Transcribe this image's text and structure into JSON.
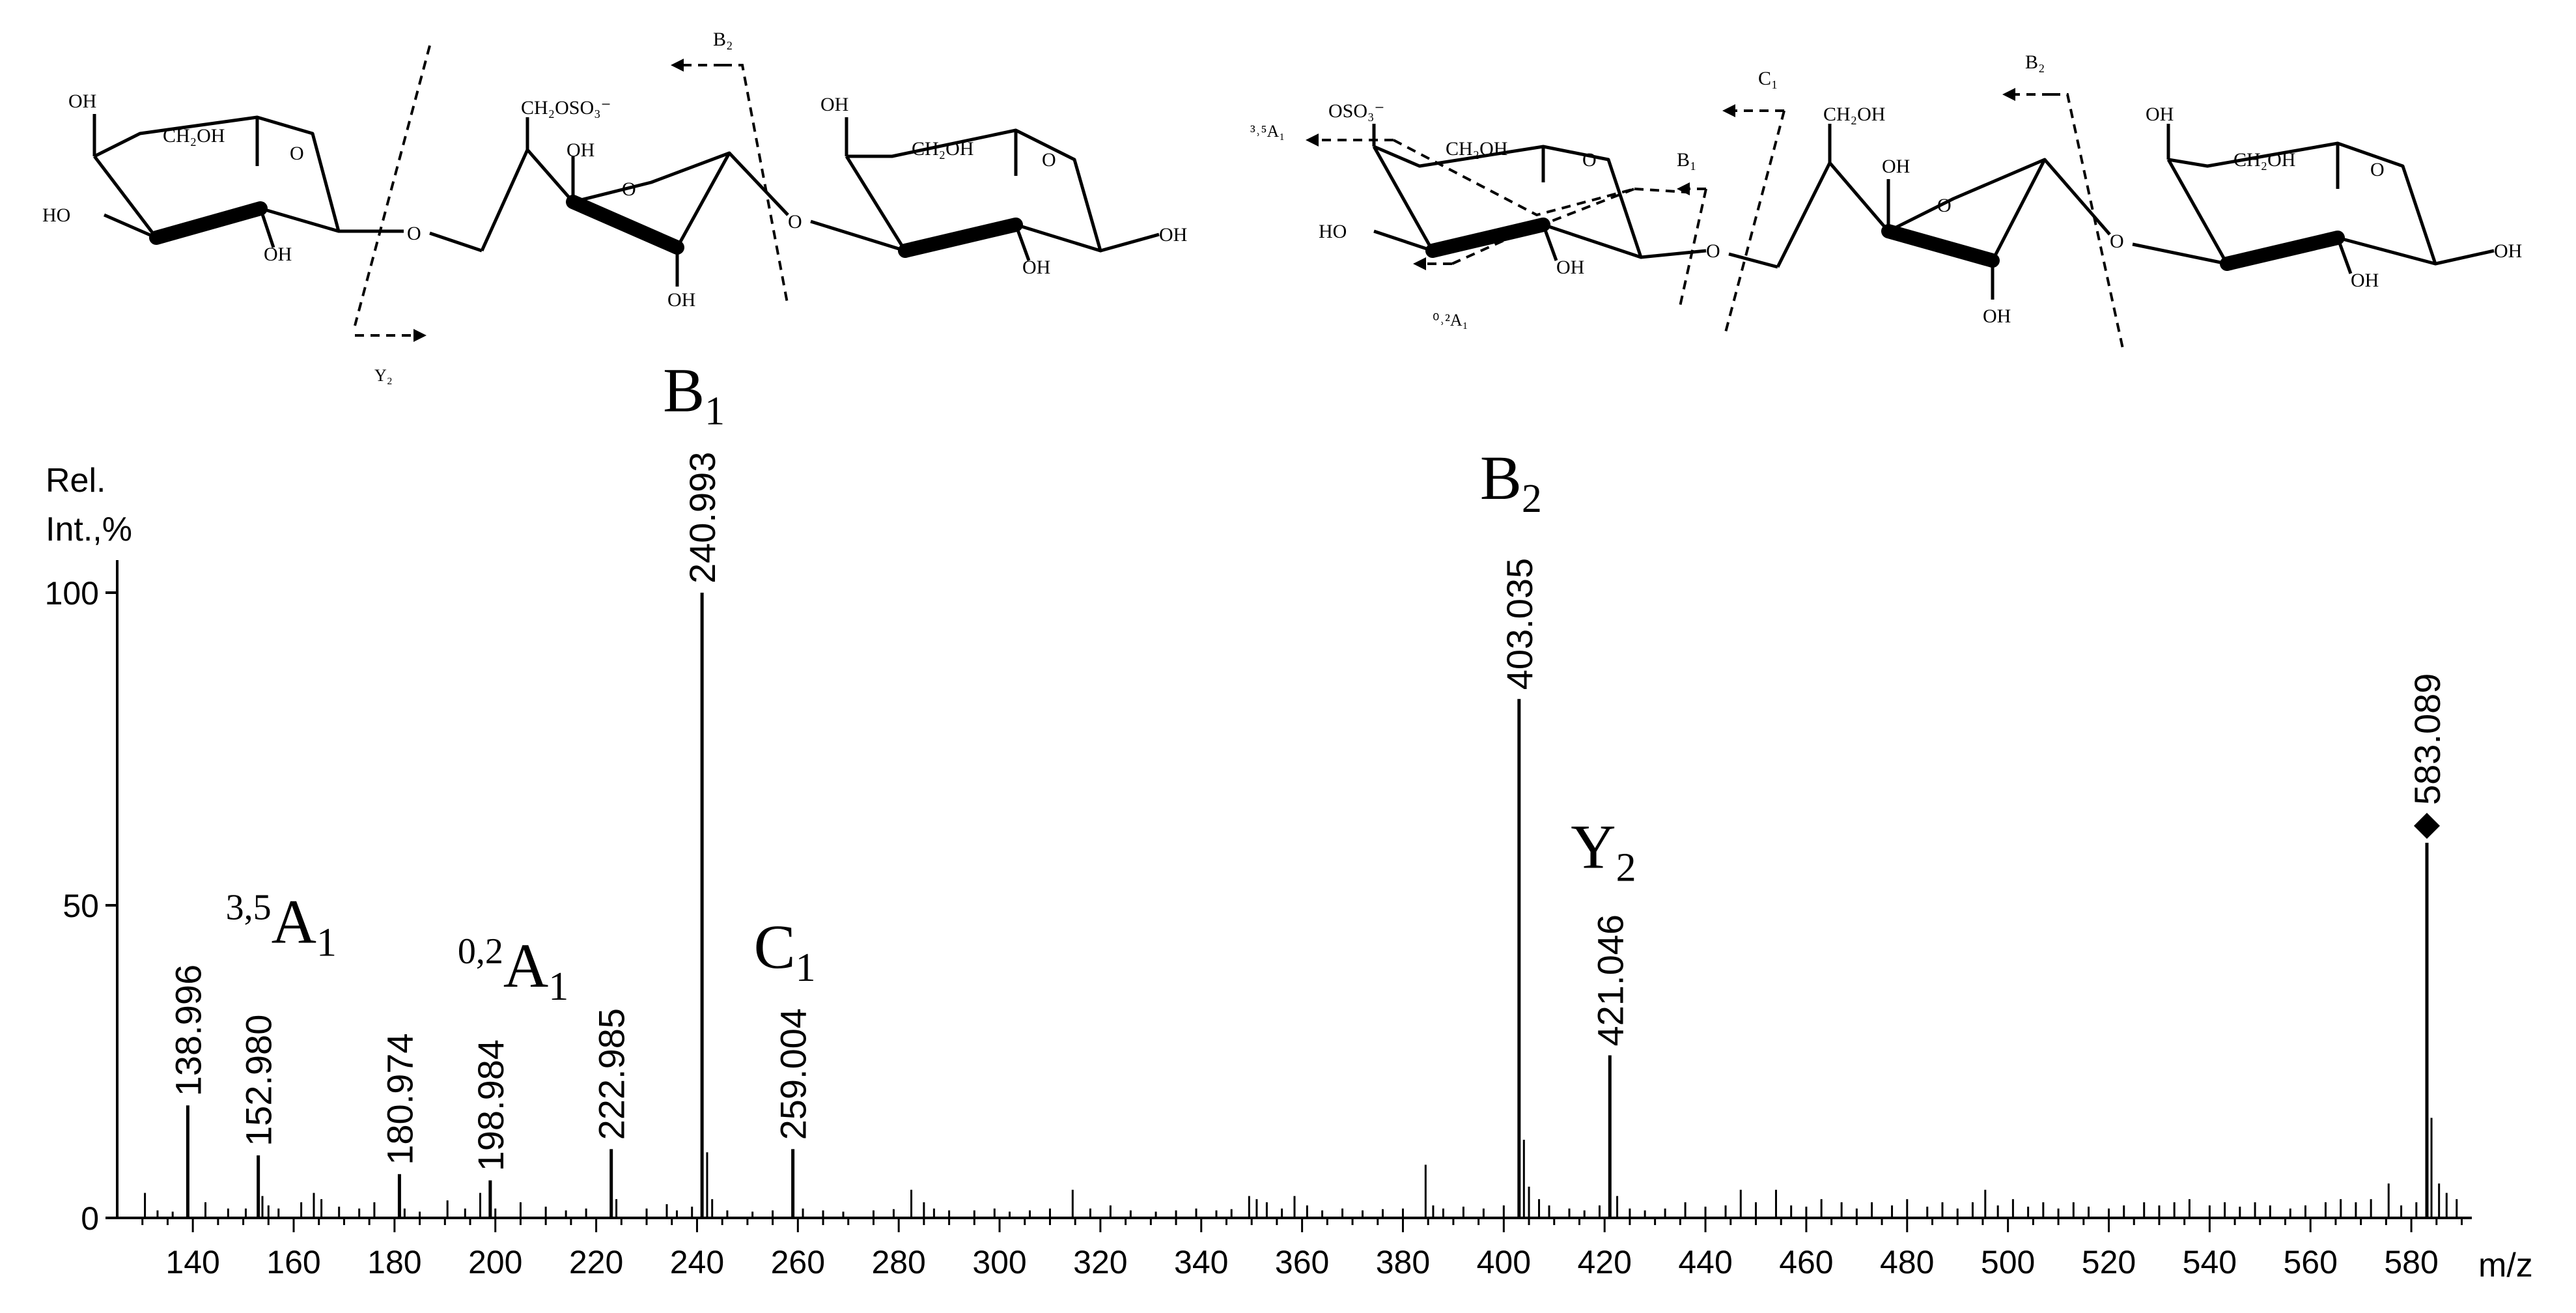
{
  "structures": {
    "left_molecule": {
      "ring1": {
        "oh_top": "OH",
        "ch2oh": "CH₂OH",
        "ho_left": "HO",
        "oh_bottom": "OH",
        "o_ring": "O"
      },
      "link1": "O",
      "ring2": {
        "ch2oso3": "CH₂OSO₃⁻",
        "oh_top": "OH",
        "o_ring": "O",
        "oh_bottom": "OH"
      },
      "link2": "O",
      "ring3": {
        "oh_top": "OH",
        "ch2oh": "CH₂OH",
        "oh_bottom": "OH",
        "oh_right": "OH",
        "o_ring": "O"
      },
      "cleavages": [
        {
          "label": "B₂"
        },
        {
          "label": "Y₂"
        }
      ]
    },
    "right_molecule": {
      "ring1": {
        "oso3": "OSO₃⁻",
        "ch2oh": "CH₂OH",
        "ho_left": "HO",
        "oh_bottom": "OH",
        "o_ring": "O"
      },
      "link1": "O",
      "ring2": {
        "ch2oh": "CH₂OH",
        "oh_top": "OH",
        "o_ring": "O",
        "oh_bottom": "OH"
      },
      "link2": "O",
      "ring3": {
        "oh_top": "OH",
        "ch2oh": "CH₂OH",
        "oh_bottom": "OH",
        "oh_right": "OH",
        "o_ring": "O"
      },
      "cleavages": [
        {
          "label": "³˒⁵A₁"
        },
        {
          "label": "⁰˒²A₁"
        },
        {
          "label": "B₁"
        },
        {
          "label": "C₁"
        },
        {
          "label": "B₂"
        }
      ]
    }
  },
  "chart_data": {
    "type": "bar",
    "subtype": "mass-spectrum",
    "ylabel_line1": "Rel.",
    "ylabel_line2": "Int.,%",
    "xlabel": "m/z",
    "xlim": [
      125,
      592
    ],
    "ylim": [
      0,
      105
    ],
    "y_ticks": [
      0,
      50,
      100
    ],
    "x_ticks": [
      140,
      160,
      180,
      200,
      220,
      240,
      260,
      280,
      300,
      320,
      340,
      360,
      380,
      400,
      420,
      440,
      460,
      480,
      500,
      520,
      540,
      560,
      580
    ],
    "precursor_marker": "◆",
    "labeled_peaks": [
      {
        "mz": 138.996,
        "label": "138.996",
        "intensity": 18
      },
      {
        "mz": 152.98,
        "label": "152.980",
        "intensity": 10
      },
      {
        "mz": 180.974,
        "label": "180.974",
        "intensity": 7
      },
      {
        "mz": 198.984,
        "label": "198.984",
        "intensity": 6
      },
      {
        "mz": 222.985,
        "label": "222.985",
        "intensity": 11
      },
      {
        "mz": 240.993,
        "label": "240.993",
        "intensity": 100
      },
      {
        "mz": 259.004,
        "label": "259.004",
        "intensity": 11
      },
      {
        "mz": 403.035,
        "label": "403.035",
        "intensity": 83
      },
      {
        "mz": 421.046,
        "label": "421.046",
        "intensity": 26
      },
      {
        "mz": 583.089,
        "label": "583.089",
        "intensity": 60,
        "precursor": true
      }
    ],
    "minor_peaks": [
      [
        130.5,
        4
      ],
      [
        133,
        1.2
      ],
      [
        136,
        1
      ],
      [
        142.5,
        2.5
      ],
      [
        147,
        1.5
      ],
      [
        150.5,
        1.5
      ],
      [
        153.8,
        3.5
      ],
      [
        155,
        2
      ],
      [
        157,
        1.5
      ],
      [
        161.5,
        2.5
      ],
      [
        164,
        4
      ],
      [
        165.5,
        3
      ],
      [
        169,
        1.8
      ],
      [
        173,
        1.5
      ],
      [
        176,
        2.5
      ],
      [
        182,
        1.5
      ],
      [
        185,
        1
      ],
      [
        190.5,
        2.8
      ],
      [
        194,
        1.5
      ],
      [
        197,
        4
      ],
      [
        200,
        1.5
      ],
      [
        205,
        2.5
      ],
      [
        210,
        1.8
      ],
      [
        214,
        1.2
      ],
      [
        218,
        1.5
      ],
      [
        224,
        3
      ],
      [
        230,
        1.5
      ],
      [
        234,
        2.2
      ],
      [
        236,
        1.2
      ],
      [
        239,
        1.8
      ],
      [
        242,
        10.5
      ],
      [
        243,
        3
      ],
      [
        246,
        1.2
      ],
      [
        251,
        1
      ],
      [
        255,
        1.2
      ],
      [
        261,
        1.5
      ],
      [
        265,
        1.2
      ],
      [
        269,
        1
      ],
      [
        275,
        1.2
      ],
      [
        279,
        1.4
      ],
      [
        282.5,
        4.5
      ],
      [
        285,
        2.5
      ],
      [
        287,
        1.5
      ],
      [
        290,
        1.2
      ],
      [
        295,
        1.2
      ],
      [
        299,
        1.5
      ],
      [
        302,
        1
      ],
      [
        306,
        1.2
      ],
      [
        310,
        1.5
      ],
      [
        314.5,
        4.5
      ],
      [
        318,
        1.5
      ],
      [
        322,
        2
      ],
      [
        326,
        1.2
      ],
      [
        331,
        1
      ],
      [
        335,
        1.2
      ],
      [
        339,
        1.5
      ],
      [
        343,
        1.2
      ],
      [
        346,
        1.4
      ],
      [
        349.5,
        3.5
      ],
      [
        351,
        3
      ],
      [
        353,
        2.5
      ],
      [
        356,
        1.5
      ],
      [
        358.5,
        3.5
      ],
      [
        361,
        2
      ],
      [
        364,
        1.2
      ],
      [
        368,
        1.5
      ],
      [
        372,
        1.2
      ],
      [
        376,
        1.4
      ],
      [
        380,
        1.5
      ],
      [
        384.5,
        8.5
      ],
      [
        386,
        2
      ],
      [
        388,
        1.5
      ],
      [
        392,
        1.8
      ],
      [
        396,
        1.5
      ],
      [
        400,
        2
      ],
      [
        404,
        12.5
      ],
      [
        405,
        5
      ],
      [
        407,
        3
      ],
      [
        409,
        2
      ],
      [
        413,
        1.5
      ],
      [
        416,
        1.2
      ],
      [
        419,
        2
      ],
      [
        422.5,
        3.5
      ],
      [
        425,
        1.5
      ],
      [
        428,
        1.2
      ],
      [
        432,
        1.5
      ],
      [
        436,
        2.5
      ],
      [
        440,
        1.8
      ],
      [
        444,
        2
      ],
      [
        447,
        4.5
      ],
      [
        450,
        2.5
      ],
      [
        454,
        4.5
      ],
      [
        457,
        2
      ],
      [
        460,
        1.8
      ],
      [
        463,
        3
      ],
      [
        467,
        2.5
      ],
      [
        470,
        1.5
      ],
      [
        473,
        2.5
      ],
      [
        477,
        2
      ],
      [
        480,
        3
      ],
      [
        484,
        1.8
      ],
      [
        487,
        2.5
      ],
      [
        490,
        1.5
      ],
      [
        493,
        2.5
      ],
      [
        495.5,
        4.5
      ],
      [
        498,
        2
      ],
      [
        501,
        3
      ],
      [
        504,
        1.8
      ],
      [
        507,
        2.5
      ],
      [
        510,
        1.5
      ],
      [
        513,
        2.5
      ],
      [
        516,
        1.8
      ],
      [
        520,
        1.5
      ],
      [
        523,
        2
      ],
      [
        527,
        2.5
      ],
      [
        530,
        2
      ],
      [
        533,
        2.5
      ],
      [
        536,
        3
      ],
      [
        540,
        2
      ],
      [
        543,
        2.5
      ],
      [
        546,
        1.8
      ],
      [
        549,
        2.5
      ],
      [
        552,
        2
      ],
      [
        556,
        1.5
      ],
      [
        559,
        2
      ],
      [
        563,
        2.5
      ],
      [
        566,
        3
      ],
      [
        569,
        2.5
      ],
      [
        572,
        3
      ],
      [
        575.5,
        5.5
      ],
      [
        578,
        2
      ],
      [
        581,
        2.5
      ],
      [
        584,
        16
      ],
      [
        585.5,
        5.5
      ],
      [
        587,
        4
      ],
      [
        589,
        3
      ]
    ],
    "ion_labels": [
      {
        "pre": "3,5",
        "main": "A",
        "sub": "1",
        "mz": 152.98,
        "level": 44
      },
      {
        "pre": "0,2",
        "main": "A",
        "sub": "1",
        "mz": 198.984,
        "level": 37
      },
      {
        "pre": "",
        "main": "C",
        "sub": "1",
        "mz": 259.004,
        "level": 40
      },
      {
        "pre": "",
        "main": "B",
        "sub": "1",
        "mz": 240.993,
        "level": 129
      },
      {
        "pre": "",
        "main": "B",
        "sub": "2",
        "mz": 403.035,
        "level": 115
      },
      {
        "pre": "",
        "main": "Y",
        "sub": "2",
        "mz": 421.046,
        "level": 56
      }
    ]
  }
}
